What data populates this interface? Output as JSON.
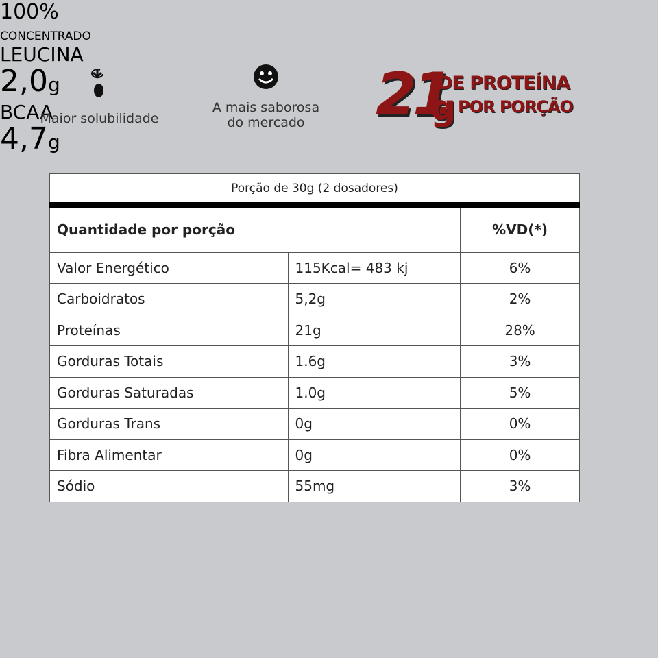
{
  "features": [
    {
      "label": "Maior solubilidade"
    },
    {
      "label": "A mais saborosa do mercado"
    }
  ],
  "protein": {
    "amount": "21",
    "unit": "g",
    "line1": "DE PROTEÍNA",
    "line2": "POR PORÇÃO"
  },
  "table": {
    "serving": "Porção de 30g (2 dosadores)",
    "header": [
      "Quantidade por porção",
      "%VD(*)"
    ],
    "rows": [
      [
        "Valor Energético",
        "115Kcal= 483 kj",
        "6%"
      ],
      [
        "Carboidratos",
        "5,2g",
        "2%"
      ],
      [
        "Proteínas",
        "21g",
        "28%"
      ],
      [
        "Gorduras Totais",
        "1.6g",
        "3%"
      ],
      [
        "Gorduras Saturadas",
        "1.0g",
        "5%"
      ],
      [
        "Gorduras Trans",
        "0g",
        "0%"
      ],
      [
        "Fibra Alimentar",
        "0g",
        "0%"
      ],
      [
        "Sódio",
        "55mg",
        "3%"
      ]
    ]
  },
  "badges": [
    {
      "top": "100%",
      "bottom": "CONCENTRADO"
    },
    {
      "top": "LEUCINA",
      "value": "2,0",
      "unit": "g"
    },
    {
      "top": "BCAA",
      "value": "4,7",
      "unit": "g"
    }
  ]
}
